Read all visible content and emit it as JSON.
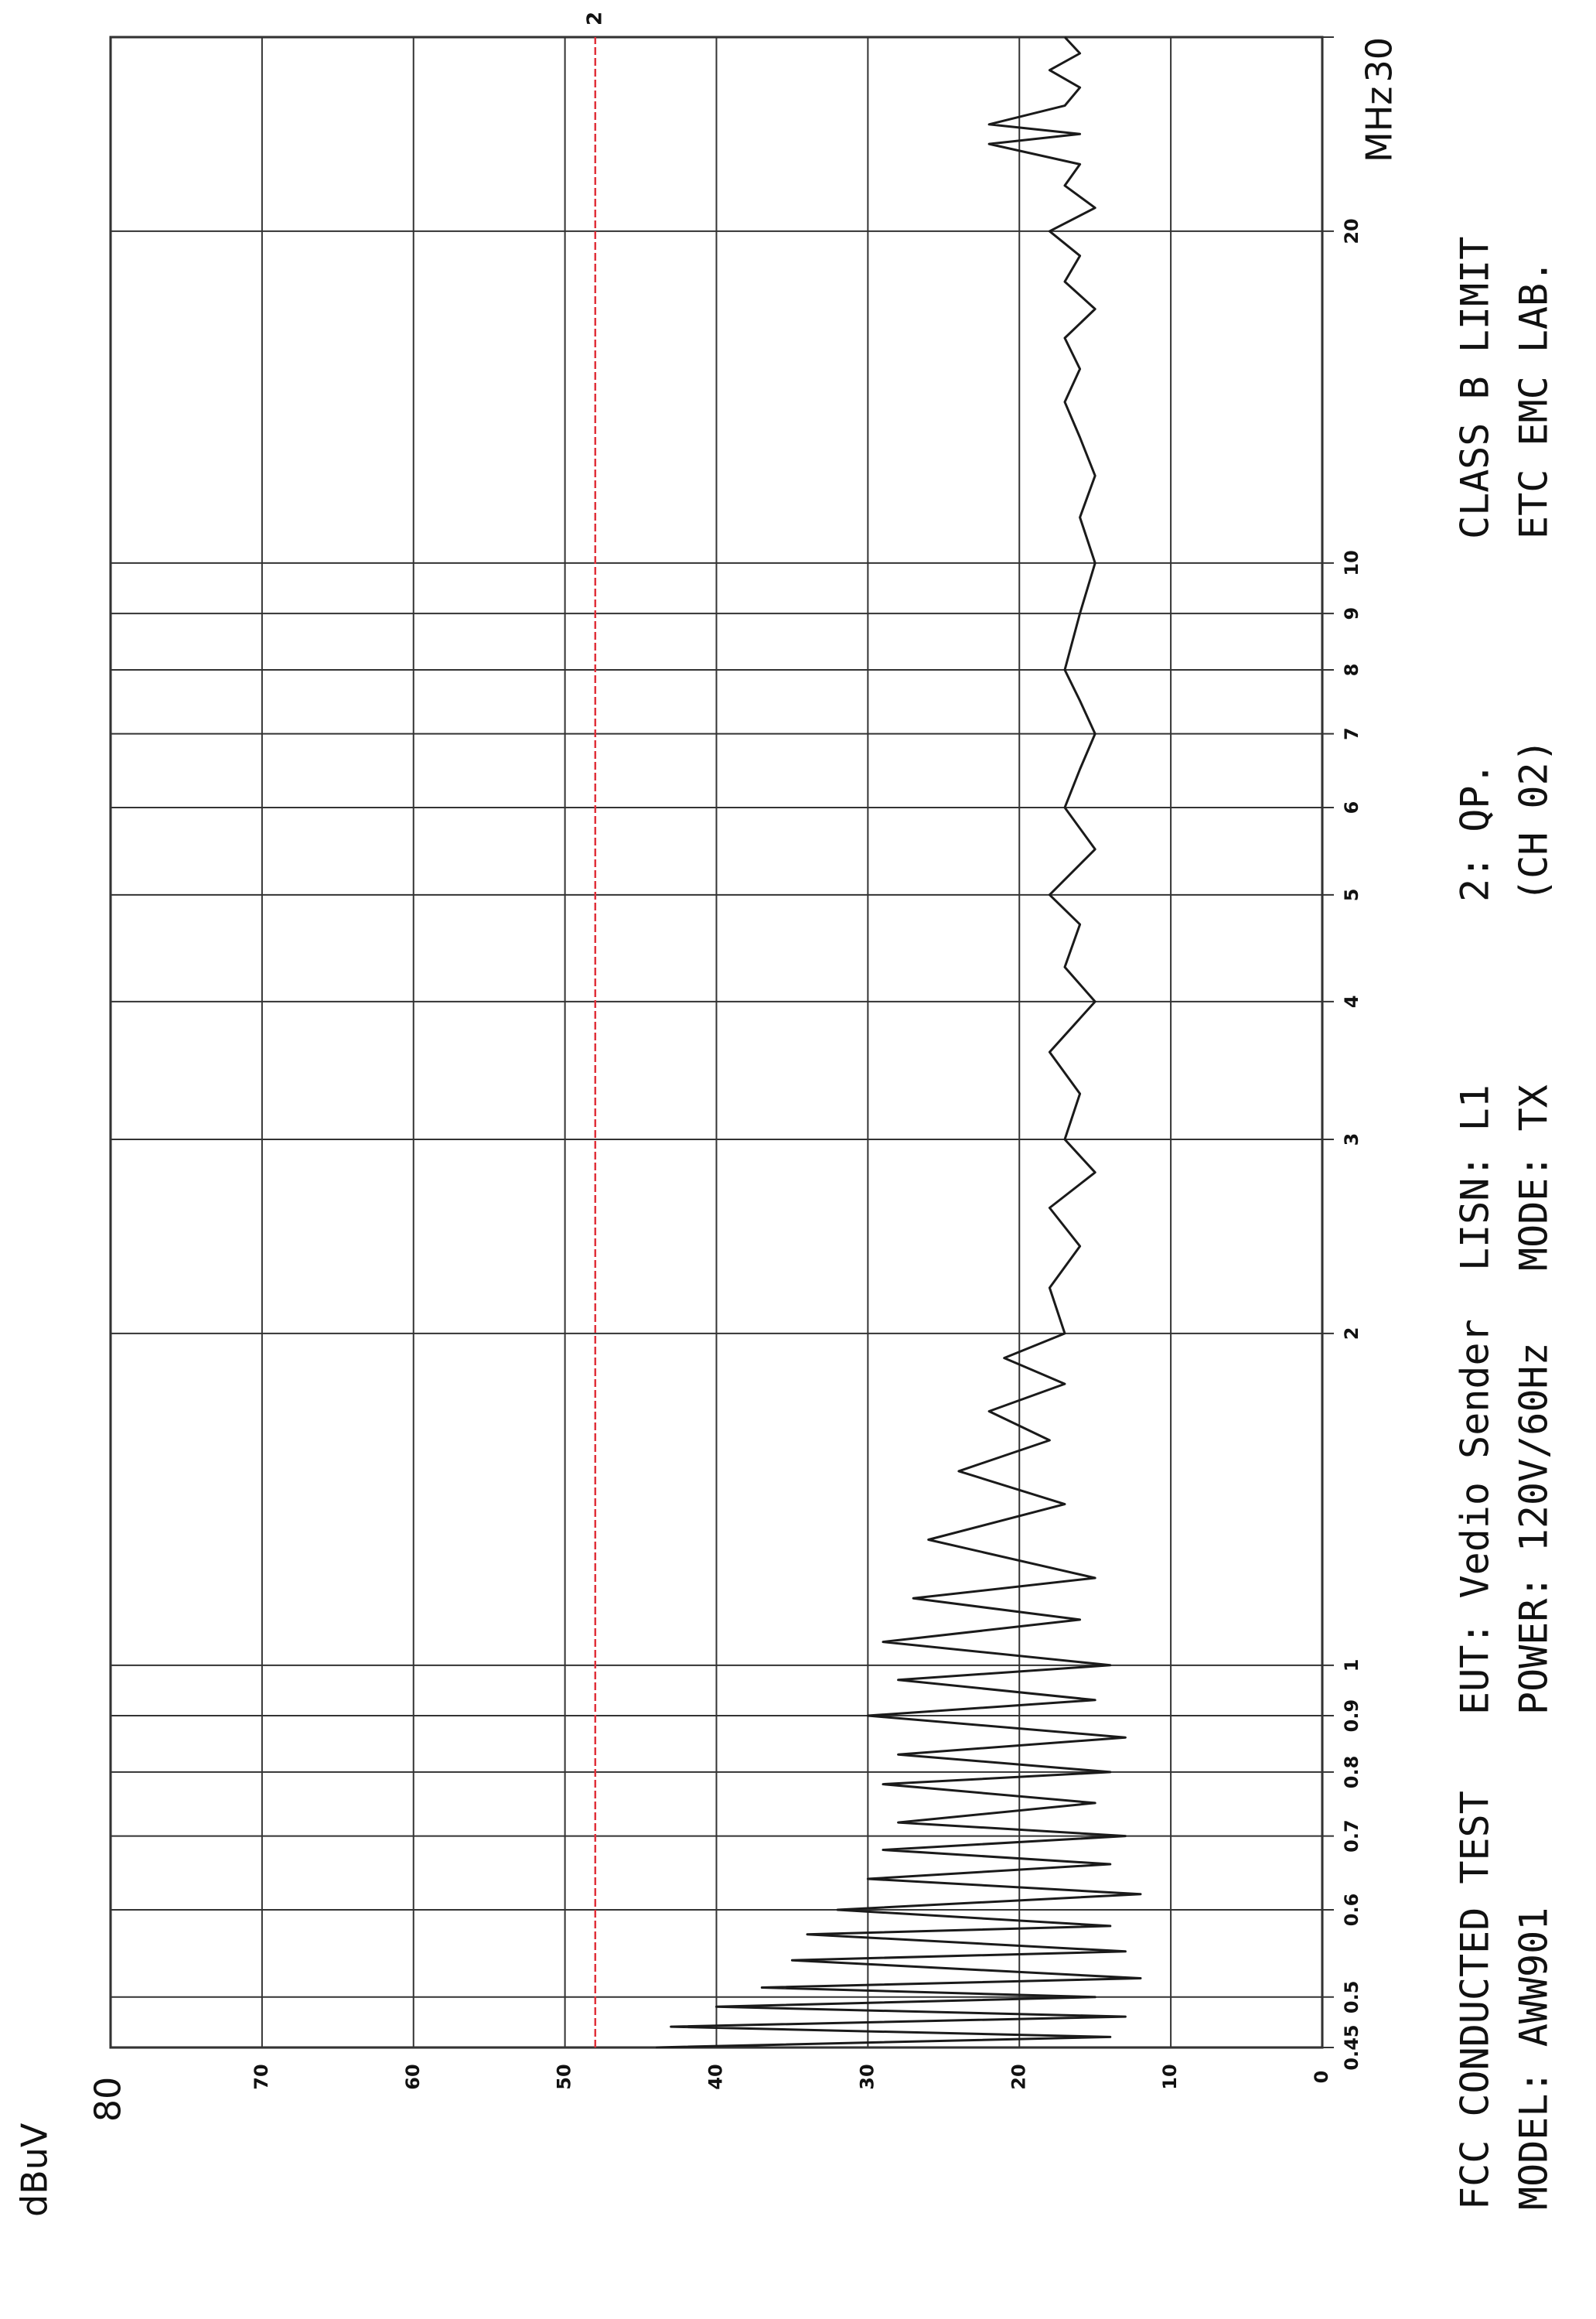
{
  "chart_data": {
    "type": "line",
    "y_label": "dBuV",
    "x_label": "MHz",
    "xscale": "log",
    "grid": true,
    "xlim": [
      0.45,
      30
    ],
    "ylim": [
      0,
      80
    ],
    "xticks": [
      0.45,
      0.5,
      0.6,
      0.7,
      0.8,
      0.9,
      1,
      2,
      3,
      4,
      5,
      6,
      7,
      8,
      9,
      10,
      20,
      30
    ],
    "yticks": [
      0,
      10,
      20,
      30,
      40,
      50,
      60,
      70,
      80
    ],
    "x": [
      0.45,
      0.46,
      0.47,
      0.48,
      0.49,
      0.5,
      0.51,
      0.52,
      0.54,
      0.55,
      0.57,
      0.58,
      0.6,
      0.62,
      0.64,
      0.66,
      0.68,
      0.7,
      0.72,
      0.75,
      0.78,
      0.8,
      0.83,
      0.86,
      0.9,
      0.93,
      0.97,
      1.0,
      1.05,
      1.1,
      1.15,
      1.2,
      1.3,
      1.4,
      1.5,
      1.6,
      1.7,
      1.8,
      1.9,
      2.0,
      2.2,
      2.4,
      2.6,
      2.8,
      3.0,
      3.3,
      3.6,
      4.0,
      4.3,
      4.7,
      5.0,
      5.5,
      6.0,
      6.5,
      7.0,
      7.5,
      8.0,
      9.0,
      10,
      11,
      12,
      13,
      14,
      15,
      16,
      17,
      18,
      19,
      20,
      21,
      22,
      23,
      24,
      24.5,
      25,
      26,
      27,
      28,
      29,
      30
    ],
    "values": [
      44,
      14,
      43,
      13,
      40,
      15,
      37,
      12,
      35,
      13,
      34,
      14,
      32,
      12,
      30,
      14,
      29,
      13,
      28,
      15,
      29,
      14,
      28,
      13,
      30,
      15,
      28,
      14,
      29,
      16,
      27,
      15,
      26,
      17,
      24,
      18,
      22,
      17,
      21,
      17,
      18,
      16,
      18,
      15,
      17,
      16,
      18,
      15,
      17,
      16,
      18,
      15,
      17,
      16,
      15,
      16,
      17,
      16,
      15,
      16,
      15,
      16,
      17,
      16,
      17,
      15,
      17,
      16,
      18,
      15,
      17,
      16,
      22,
      16,
      22,
      17,
      16,
      18,
      16,
      17
    ],
    "color": "#1a1a1a",
    "limit": {
      "label": "2",
      "value": 48,
      "color": "#e0303a"
    },
    "annotations": [
      "FCC CONDUCTED TEST",
      "MODEL: AWW901",
      "EUT: Vedio Sender",
      "POWER: 120V/60Hz",
      "LISN: L1",
      "MODE: TX",
      "2: QP.",
      "(CH 02)",
      "CLASS B LIMIT",
      "ETC EMC LAB."
    ]
  }
}
